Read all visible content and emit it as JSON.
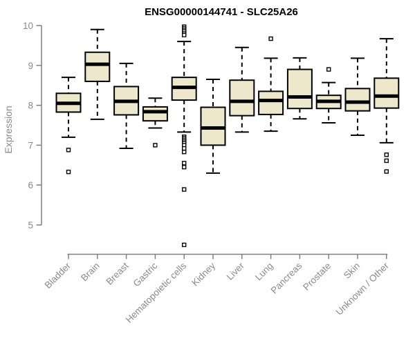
{
  "chart_data": {
    "type": "boxplot",
    "title": "ENSG00000144741 - SLC25A26",
    "ylabel": "Expression",
    "xlabel": "",
    "ylim": [
      5,
      10
    ],
    "yticks": [
      5,
      6,
      7,
      8,
      9,
      10
    ],
    "grid": false,
    "legend": false,
    "categories": [
      "Bladder",
      "Brain",
      "Breast",
      "Gastric",
      "Hematopoietic cells",
      "Kidney",
      "Liver",
      "Lung",
      "Pancreas",
      "Prostate",
      "Skin",
      "Unknown / Other"
    ],
    "boxes": [
      {
        "category": "Bladder",
        "whisker_low": 7.2,
        "q1": 7.83,
        "median": 8.05,
        "q3": 8.3,
        "whisker_high": 8.7,
        "outliers": [
          6.88,
          6.33
        ]
      },
      {
        "category": "Brain",
        "whisker_low": 7.65,
        "q1": 8.6,
        "median": 9.03,
        "q3": 9.33,
        "whisker_high": 9.9,
        "outliers": []
      },
      {
        "category": "Breast",
        "whisker_low": 6.92,
        "q1": 7.76,
        "median": 8.1,
        "q3": 8.47,
        "whisker_high": 9.05,
        "outliers": []
      },
      {
        "category": "Gastric",
        "whisker_low": 7.43,
        "q1": 7.61,
        "median": 7.84,
        "q3": 7.96,
        "whisker_high": 8.18,
        "outliers": [
          7.0
        ]
      },
      {
        "category": "Hematopoietic cells",
        "whisker_low": 7.33,
        "q1": 8.13,
        "median": 8.45,
        "q3": 8.7,
        "whisker_high": 9.6,
        "outliers": [
          9.97,
          9.93,
          9.89,
          9.85,
          9.8,
          9.76,
          7.21,
          7.17,
          7.13,
          7.09,
          7.05,
          7.0,
          6.92,
          6.83,
          6.55,
          6.45,
          5.89,
          4.5
        ]
      },
      {
        "category": "Kidney",
        "whisker_low": 6.3,
        "q1": 7.0,
        "median": 7.43,
        "q3": 7.95,
        "whisker_high": 8.65,
        "outliers": []
      },
      {
        "category": "Liver",
        "whisker_low": 7.33,
        "q1": 7.74,
        "median": 8.1,
        "q3": 8.63,
        "whisker_high": 9.45,
        "outliers": []
      },
      {
        "category": "Lung",
        "whisker_low": 7.35,
        "q1": 7.77,
        "median": 8.12,
        "q3": 8.35,
        "whisker_high": 9.18,
        "outliers": [
          9.67
        ]
      },
      {
        "category": "Pancreas",
        "whisker_low": 7.66,
        "q1": 7.92,
        "median": 8.21,
        "q3": 8.9,
        "whisker_high": 9.19,
        "outliers": []
      },
      {
        "category": "Prostate",
        "whisker_low": 7.56,
        "q1": 7.92,
        "median": 8.1,
        "q3": 8.25,
        "whisker_high": 8.57,
        "outliers": [
          8.9
        ]
      },
      {
        "category": "Skin",
        "whisker_low": 7.25,
        "q1": 7.86,
        "median": 8.08,
        "q3": 8.42,
        "whisker_high": 9.18,
        "outliers": []
      },
      {
        "category": "Unknown / Other",
        "whisker_low": 7.06,
        "q1": 7.93,
        "median": 8.23,
        "q3": 8.68,
        "whisker_high": 9.67,
        "outliers": [
          6.76,
          6.61,
          6.34
        ]
      }
    ]
  },
  "colors": {
    "box_fill": "#EDE7CB",
    "box_border": "#000000",
    "median": "#000000",
    "whisker": "#000000",
    "outlier_fill": "#ffffff",
    "axis_line": "#808080",
    "tick_text": "#8a8a8a",
    "title_text": "#000000",
    "background": "#ffffff"
  }
}
